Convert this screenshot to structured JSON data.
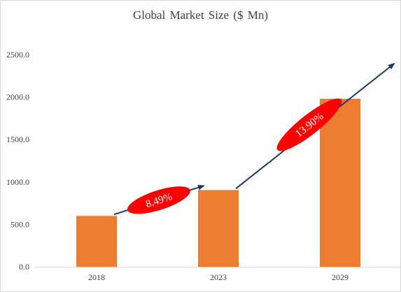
{
  "chart_data": {
    "type": "bar",
    "title": "Global Market Size ($ Mn)",
    "xlabel": "",
    "ylabel": "",
    "categories": [
      "2018",
      "2023",
      "2029"
    ],
    "values": [
      600,
      905,
      1980
    ],
    "ylim": [
      0,
      2500
    ],
    "yticks": [
      "0.0",
      "500.0",
      "1000.0",
      "1500.0",
      "2000.0",
      "2500.0"
    ],
    "grid": false,
    "legend": "none",
    "annotations": [
      {
        "text": "8.49%",
        "from": "2018",
        "to": "2023"
      },
      {
        "text": "13.90%",
        "from": "2023",
        "to": "2029"
      }
    ],
    "colors": {
      "bar": "#ed7d31",
      "arrow": "#1f3864",
      "badge": "#ff0000",
      "axis": "#d9d9d9"
    }
  }
}
